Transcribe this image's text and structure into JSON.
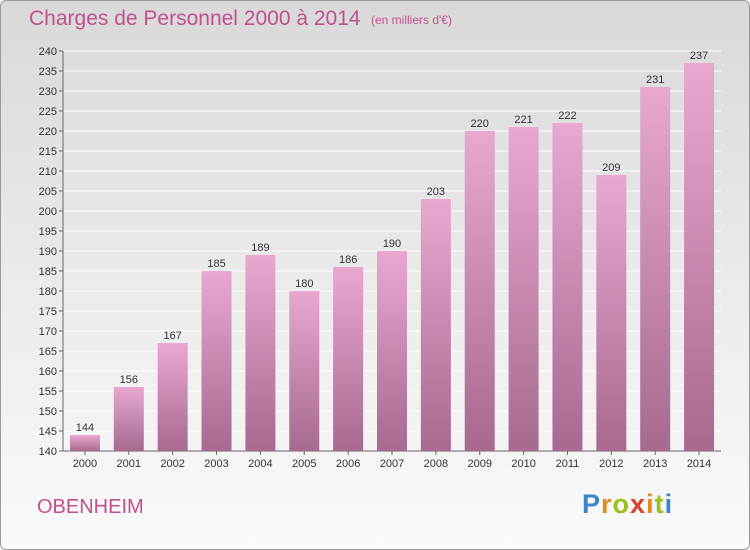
{
  "chart_data": {
    "type": "bar",
    "title": "Charges de Personnel 2000 à 2014",
    "subtitle": "(en milliers d'€)",
    "categories": [
      "2000",
      "2001",
      "2002",
      "2003",
      "2004",
      "2005",
      "2006",
      "2007",
      "2008",
      "2009",
      "2010",
      "2011",
      "2012",
      "2013",
      "2014"
    ],
    "values": [
      144,
      156,
      167,
      185,
      189,
      180,
      186,
      190,
      203,
      220,
      221,
      222,
      209,
      231,
      237
    ],
    "ylim": [
      140,
      240
    ],
    "ytick_step": 5,
    "grid": true,
    "legend": "none",
    "colors": {
      "bar_top": "#e8a8d0",
      "bar_bottom": "#a8698f",
      "title": "#c2508c"
    }
  },
  "commune": "OBENHEIM",
  "logo": {
    "p": "P",
    "r": "r",
    "o": "o",
    "x": "x",
    "i1": "i",
    "t": "t",
    "i2": "i"
  }
}
